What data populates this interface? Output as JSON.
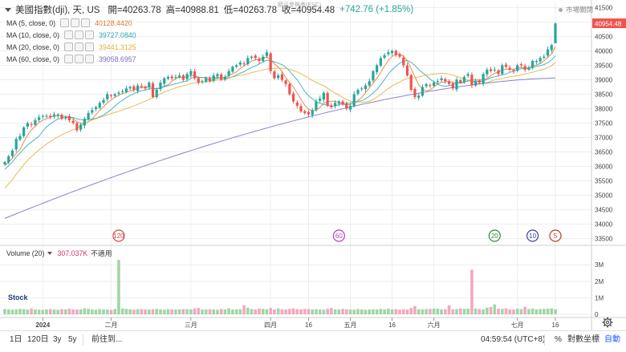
{
  "header": {
    "title": "美國指數(dji), 天, US",
    "ohlc": [
      "開=40263.78",
      "高=40988.81",
      "低=40263.78",
      "收=40954.48"
    ],
    "change": "+742.76 (+1.85%)",
    "status": "市場關閉",
    "subtitle": "顯示參與者(ESC)"
  },
  "ma_legend": [
    {
      "label": "MA (5, close, 0)",
      "value": "40128.4420",
      "color": "#e07a2e"
    },
    {
      "label": "MA (10, close, 0)",
      "value": "39727.0840",
      "color": "#2aa8b8"
    },
    {
      "label": "MA (20, close, 0)",
      "value": "39441.3125",
      "color": "#e0b03a"
    },
    {
      "label": "MA (60, close, 0)",
      "value": "39058.6957",
      "color": "#7b6cc4"
    }
  ],
  "volume_legend": {
    "label": "Volume (20)",
    "value": "307.037K",
    "note": "不適用",
    "color": "#d6306e"
  },
  "bottom_bar": {
    "ranges": [
      "1日",
      "120日",
      "3y",
      "5y"
    ],
    "goto": "前往到...",
    "time": "04:59:54 (UTC+8)",
    "percent": "%",
    "log": "對數坐標",
    "auto": "自動"
  },
  "logo": "Stock",
  "colors": {
    "up": "#26a69a",
    "down": "#ef5350",
    "grid": "#eeeeee",
    "last_price_bg": "#ef5350"
  },
  "chart_data": {
    "type": "candlestick",
    "x_labels": [
      {
        "i": 10,
        "text": "2024"
      },
      {
        "i": 28,
        "text": "二月"
      },
      {
        "i": 49,
        "text": "三月"
      },
      {
        "i": 70,
        "text": "四月"
      },
      {
        "i": 80,
        "text": "16"
      },
      {
        "i": 91,
        "text": "五月"
      },
      {
        "i": 102,
        "text": "16"
      },
      {
        "i": 113,
        "text": "六月"
      },
      {
        "i": 135,
        "text": "七月"
      },
      {
        "i": 145,
        "text": "16"
      }
    ],
    "y_ticks": [
      33500,
      34000,
      34500,
      35000,
      35500,
      36000,
      36500,
      37000,
      37500,
      38000,
      38500,
      39000,
      39500,
      40000,
      40500,
      41000,
      41500
    ],
    "ylim": [
      33350,
      41650
    ],
    "last_price": "40954.48",
    "volume_ticks": [
      "3M",
      "2M",
      "1M",
      "0"
    ],
    "volume_max": 3.4,
    "markers": [
      {
        "i": 30,
        "label": "120",
        "color": "#d64545"
      },
      {
        "i": 88,
        "label": "60",
        "color": "#b83fb8"
      },
      {
        "i": 129,
        "label": "20",
        "color": "#2e8b3a"
      },
      {
        "i": 139,
        "label": "10",
        "color": "#3b3fa8"
      },
      {
        "i": 145,
        "label": "5",
        "color": "#c0392b"
      }
    ],
    "close": [
      36150,
      36350,
      36550,
      36950,
      37050,
      37350,
      37500,
      37450,
      37600,
      37700,
      37750,
      37750,
      37700,
      37800,
      37800,
      37650,
      37700,
      37600,
      37500,
      37250,
      37450,
      37650,
      37850,
      37950,
      38050,
      38200,
      38300,
      38500,
      38450,
      38500,
      38550,
      38600,
      38700,
      38750,
      38650,
      38800,
      38750,
      38700,
      38900,
      38400,
      38650,
      38900,
      39050,
      39100,
      39050,
      39100,
      39150,
      39000,
      39200,
      39300,
      39050,
      38900,
      38950,
      39050,
      38950,
      39150,
      39200,
      39000,
      39100,
      39300,
      39450,
      39500,
      39600,
      39550,
      39750,
      39800,
      39750,
      39650,
      39800,
      39950,
      39300,
      39050,
      39150,
      39000,
      38850,
      38500,
      38250,
      38100,
      37900,
      37850,
      37800,
      37950,
      38250,
      38350,
      38550,
      38100,
      38050,
      38200,
      38250,
      38150,
      38000,
      38100,
      38500,
      38650,
      38700,
      38800,
      38950,
      39300,
      39500,
      39750,
      39850,
      39950,
      40000,
      39850,
      39800,
      39500,
      39150,
      38650,
      38400,
      38450,
      38750,
      38850,
      38800,
      38900,
      38950,
      39050,
      38950,
      38850,
      38700,
      39000,
      38900,
      39100,
      39200,
      38800,
      38950,
      38900,
      39200,
      39350,
      39300,
      39350,
      39200,
      39500,
      39450,
      39350,
      39300,
      39500,
      39500,
      39350,
      39400,
      39650,
      39650,
      39750,
      39800,
      40050,
      40200,
      40950
    ],
    "volume": [
      0.32,
      0.3,
      0.28,
      0.3,
      0.33,
      0.31,
      0.29,
      0.35,
      0.3,
      0.28,
      0.27,
      0.3,
      0.32,
      0.29,
      0.28,
      0.31,
      0.3,
      0.34,
      0.3,
      0.29,
      0.31,
      0.36,
      0.33,
      0.3,
      0.28,
      0.31,
      0.3,
      0.29,
      0.27,
      0.32,
      3.3,
      0.35,
      0.33,
      0.3,
      0.28,
      0.31,
      0.32,
      0.3,
      0.29,
      0.31,
      0.33,
      0.3,
      0.28,
      0.31,
      0.3,
      0.29,
      0.3,
      0.32,
      0.31,
      0.3,
      0.36,
      0.38,
      0.29,
      0.3,
      0.31,
      0.29,
      0.28,
      0.33,
      0.3,
      0.36,
      0.29,
      0.3,
      0.31,
      0.55,
      0.4,
      0.32,
      0.3,
      0.35,
      0.33,
      0.31,
      0.38,
      0.3,
      0.35,
      0.31,
      0.3,
      0.33,
      0.36,
      0.31,
      0.3,
      0.33,
      0.32,
      0.3,
      0.31,
      0.29,
      0.28,
      0.34,
      0.38,
      0.3,
      0.3,
      0.33,
      0.31,
      0.3,
      0.29,
      0.32,
      0.3,
      0.28,
      0.3,
      0.31,
      0.29,
      0.33,
      0.3,
      0.34,
      0.3,
      0.31,
      0.28,
      0.3,
      0.29,
      0.38,
      0.5,
      0.31,
      0.3,
      0.32,
      0.33,
      0.35,
      0.34,
      0.3,
      0.31,
      0.55,
      0.3,
      0.32,
      0.36,
      0.33,
      0.35,
      2.7,
      0.35,
      0.32,
      0.3,
      0.4,
      0.45,
      0.6,
      0.34,
      0.33,
      0.36,
      0.3,
      0.29,
      0.34,
      0.31,
      0.45,
      0.32,
      0.35,
      0.3,
      0.32,
      0.33,
      0.34,
      0.36,
      0.31
    ]
  }
}
